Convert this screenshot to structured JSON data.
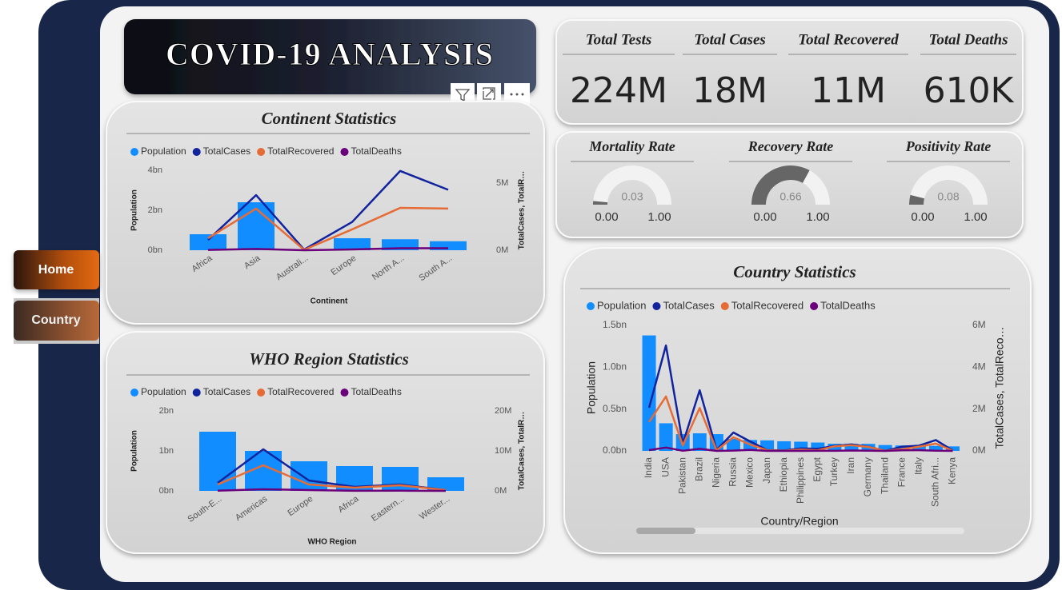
{
  "header": {
    "title": "COVID-19 ANALYSIS"
  },
  "nav": [
    "Home",
    "Country"
  ],
  "kpis": [
    {
      "label": "Total Tests",
      "value": "224M"
    },
    {
      "label": "Total Cases",
      "value": "18M"
    },
    {
      "label": "Total Recovered",
      "value": "11M"
    },
    {
      "label": "Total Deaths",
      "value": "610K"
    }
  ],
  "gauges": [
    {
      "title": "Mortality Rate",
      "value": 0.03,
      "min": {
        "value": 0,
        "label": "0.00"
      },
      "max": {
        "value": 1,
        "label": "1.00"
      },
      "color": "#666666"
    },
    {
      "title": "Recovery Rate",
      "value": 0.66,
      "min": {
        "value": 0,
        "label": "0.00"
      },
      "max": {
        "value": 1,
        "label": "1.00"
      },
      "color": "#666666"
    },
    {
      "title": "Positivity Rate",
      "value": 0.08,
      "min": {
        "value": 0,
        "label": "0.00"
      },
      "max": {
        "value": 1,
        "label": "1.00"
      },
      "color": "#666666"
    }
  ],
  "chart_data": [
    {
      "type": "combo",
      "title": "Continent Statistics",
      "x_title": "Continent",
      "y_title": "Population",
      "y2_title": "TotalCases, TotalR…",
      "categories": [
        "Africa",
        "Asia",
        "Australi...",
        "Europe",
        "North A...",
        "South A..."
      ],
      "series": [
        {
          "name": "Population",
          "color": "#118DFF",
          "kind": "bar",
          "values": [
            0.8,
            2.4,
            0.02,
            0.6,
            0.55,
            0.45
          ]
        },
        {
          "name": "TotalCases",
          "color": "#12239E",
          "kind": "line",
          "axis": "y2",
          "values": [
            0.77,
            4.1,
            0.05,
            2.1,
            5.9,
            4.5
          ]
        },
        {
          "name": "TotalRecovered",
          "color": "#E66C37",
          "kind": "line",
          "axis": "y2",
          "values": [
            0.9,
            3.1,
            0.03,
            1.55,
            3.15,
            3.1
          ]
        },
        {
          "name": "TotalDeaths",
          "color": "#6B007B",
          "kind": "line",
          "axis": "y2",
          "values": [
            0.02,
            0.1,
            0.001,
            0.06,
            0.15,
            0.15
          ]
        }
      ],
      "ylim": [
        0,
        4
      ],
      "yticks": [
        {
          "value": 0,
          "label": "0bn"
        },
        {
          "value": 2,
          "label": "2bn"
        },
        {
          "value": 4,
          "label": "4bn"
        }
      ],
      "y2lim": [
        0,
        5.95
      ],
      "y2ticks": [
        {
          "value": 0,
          "label": "0M"
        },
        {
          "value": 5,
          "label": "5M"
        }
      ]
    },
    {
      "type": "combo",
      "title": "WHO Region Statistics",
      "x_title": "WHO Region",
      "y_title": "Population",
      "y2_title": "TotalCases, TotalR…",
      "categories": [
        "South-E...",
        "Americas",
        "Europe",
        "Africa",
        "Eastern...",
        "Wester..."
      ],
      "series": [
        {
          "name": "Population",
          "color": "#118DFF",
          "kind": "bar",
          "values": [
            1.48,
            1.0,
            0.74,
            0.62,
            0.6,
            0.34
          ]
        },
        {
          "name": "TotalCases",
          "color": "#12239E",
          "kind": "line",
          "axis": "y2",
          "values": [
            2,
            10.4,
            2.6,
            1,
            1.6,
            0.2
          ]
        },
        {
          "name": "TotalRecovered",
          "color": "#E66C37",
          "kind": "line",
          "axis": "y2",
          "values": [
            1.6,
            6.4,
            1.6,
            0.8,
            1.4,
            0.2
          ]
        },
        {
          "name": "TotalDeaths",
          "color": "#6B007B",
          "kind": "line",
          "axis": "y2",
          "values": [
            0.05,
            0.4,
            0.2,
            0.02,
            0.04,
            0.005
          ]
        }
      ],
      "ylim": [
        0,
        2
      ],
      "yticks": [
        {
          "value": 0,
          "label": "0bn"
        },
        {
          "value": 1,
          "label": "1bn"
        },
        {
          "value": 2,
          "label": "2bn"
        }
      ],
      "y2lim": [
        0,
        20
      ],
      "y2ticks": [
        {
          "value": 0,
          "label": "0M"
        },
        {
          "value": 10,
          "label": "10M"
        },
        {
          "value": 20,
          "label": "20M"
        }
      ]
    },
    {
      "type": "combo",
      "title": "Country Statistics",
      "x_title": "Country/Region",
      "y_title": "Population",
      "y2_title": "TotalCases, TotalReco…",
      "categories": [
        "India",
        "USA",
        "Pakistan",
        "Brazil",
        "Nigeria",
        "Russia",
        "Mexico",
        "Japan",
        "Ethiopia",
        "Philippines",
        "Egypt",
        "Turkey",
        "Iran",
        "Germany",
        "Thailand",
        "France",
        "Italy",
        "South Afri...",
        "Kenya"
      ],
      "series": [
        {
          "name": "Population",
          "color": "#118DFF",
          "kind": "bar",
          "values": [
            1.38,
            0.33,
            0.2,
            0.21,
            0.2,
            0.145,
            0.13,
            0.126,
            0.115,
            0.11,
            0.1,
            0.085,
            0.084,
            0.084,
            0.07,
            0.065,
            0.06,
            0.06,
            0.054
          ]
        },
        {
          "name": "TotalCases",
          "color": "#12239E",
          "kind": "line",
          "axis": "y2",
          "values": [
            2.06,
            5.04,
            0.35,
            2.9,
            0.05,
            0.88,
            0.45,
            0.04,
            0.02,
            0.12,
            0.1,
            0.24,
            0.31,
            0.2,
            0.003,
            0.2,
            0.25,
            0.52,
            0.02
          ]
        },
        {
          "name": "TotalRecovered",
          "color": "#E66C37",
          "kind": "line",
          "axis": "y2",
          "values": [
            1.38,
            2.6,
            0.26,
            2.05,
            0.03,
            0.65,
            0.3,
            0.03,
            0.01,
            0.06,
            0.03,
            0.22,
            0.27,
            0.19,
            0.003,
            0.08,
            0.2,
            0.35,
            0.01
          ]
        },
        {
          "name": "TotalDeaths",
          "color": "#6B007B",
          "kind": "line",
          "axis": "y2",
          "values": [
            0.04,
            0.16,
            0.007,
            0.1,
            0.001,
            0.015,
            0.05,
            0.001,
            0,
            0.002,
            0.005,
            0.005,
            0.017,
            0.009,
            0,
            0.03,
            0.035,
            0.008,
            0.0006
          ]
        }
      ],
      "ylim": [
        0,
        1.5
      ],
      "yticks": [
        {
          "value": 0,
          "label": "0.0bn"
        },
        {
          "value": 0.5,
          "label": "0.5bn"
        },
        {
          "value": 1,
          "label": "1.0bn"
        },
        {
          "value": 1.5,
          "label": "1.5bn"
        }
      ],
      "y2lim": [
        0,
        6
      ],
      "y2ticks": [
        {
          "value": 0,
          "label": "0M"
        },
        {
          "value": 2,
          "label": "2M"
        },
        {
          "value": 4,
          "label": "4M"
        },
        {
          "value": 6,
          "label": "6M"
        }
      ]
    }
  ]
}
